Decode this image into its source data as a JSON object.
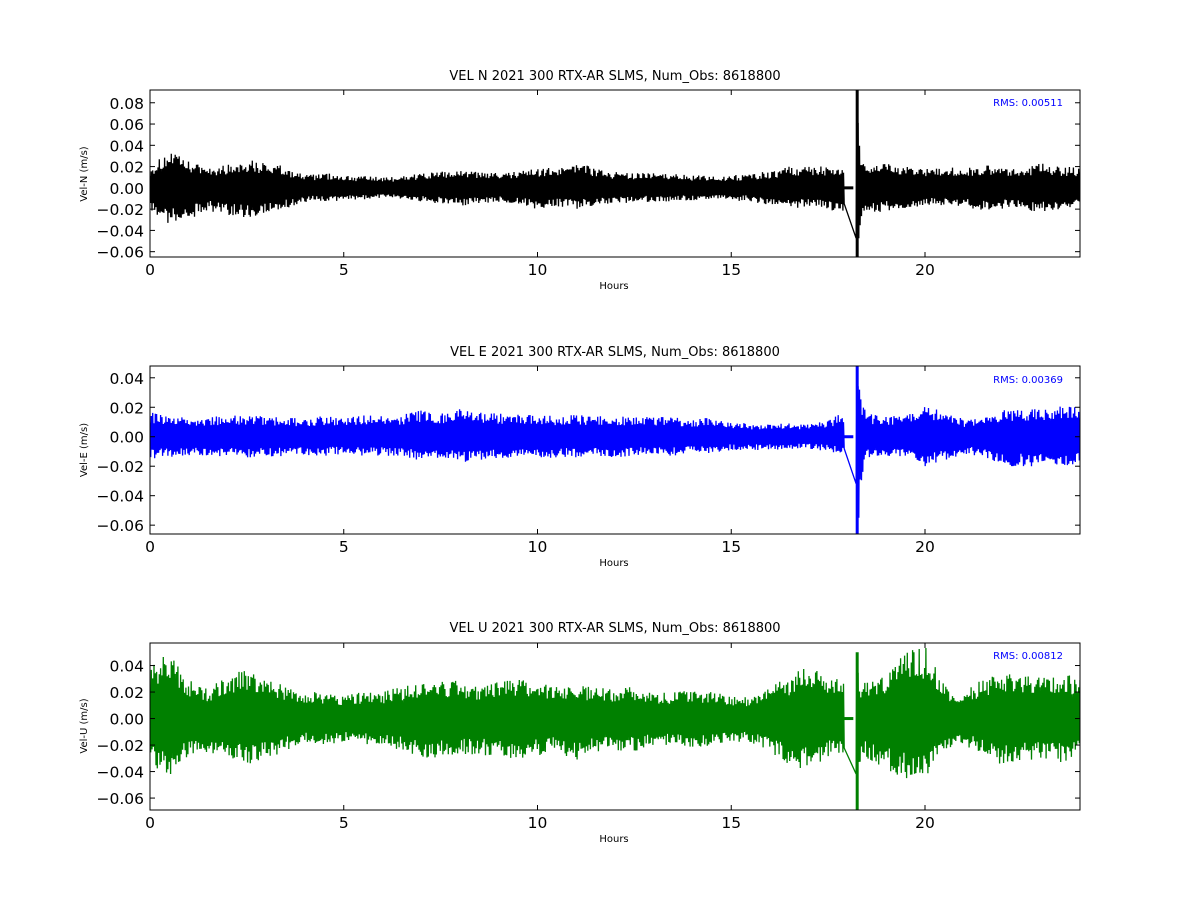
{
  "chart_data": [
    {
      "type": "line",
      "title": "VEL N 2021 300 RTX-AR  SLMS, Num_Obs: 8618800",
      "xlabel": "Hours",
      "ylabel": "Vel-N (m/s)",
      "xlim": [
        0,
        24
      ],
      "ylim": [
        -0.065,
        0.092
      ],
      "xticks": [
        "0",
        "5",
        "10",
        "15",
        "20"
      ],
      "yticks": [
        "−0.06",
        "−0.04",
        "−0.02",
        "0.00",
        "0.02",
        "0.04",
        "0.06",
        "0.08"
      ],
      "color": "#000000",
      "annotation": "RMS:  0.00511",
      "annotation_color": "#0000ff",
      "series": [
        {
          "x": [
            0,
            0.5,
            1,
            1.5,
            2,
            2.5,
            3,
            3.5,
            4,
            4.5,
            5,
            5.5,
            6,
            6.5,
            7,
            7.5,
            8,
            8.5,
            9,
            9.5,
            10,
            10.5,
            11,
            11.5,
            12,
            12.5,
            13,
            13.5,
            14,
            14.5,
            15,
            15.5,
            16,
            16.5,
            17,
            17.5,
            17.9,
            18.1,
            18.25,
            18.35,
            18.5,
            19,
            19.5,
            20,
            20.5,
            21,
            21.5,
            22,
            22.5,
            23,
            23.5,
            24
          ],
          "upper": [
            0.02,
            0.035,
            0.025,
            0.02,
            0.022,
            0.027,
            0.024,
            0.02,
            0.012,
            0.014,
            0.012,
            0.011,
            0.01,
            0.011,
            0.014,
            0.015,
            0.017,
            0.015,
            0.014,
            0.016,
            0.018,
            0.02,
            0.026,
            0.019,
            0.015,
            0.014,
            0.014,
            0.013,
            0.012,
            0.011,
            0.012,
            0.013,
            0.016,
            0.02,
            0.022,
            0.02,
            0.019,
            0.001,
            0.092,
            0.027,
            0.024,
            0.023,
            0.02,
            0.018,
            0.02,
            0.018,
            0.022,
            0.02,
            0.02,
            0.023,
            0.02,
            0.02
          ],
          "lower": [
            -0.02,
            -0.035,
            -0.03,
            -0.022,
            -0.026,
            -0.028,
            -0.024,
            -0.02,
            -0.014,
            -0.013,
            -0.012,
            -0.011,
            -0.01,
            -0.011,
            -0.013,
            -0.015,
            -0.017,
            -0.015,
            -0.014,
            -0.016,
            -0.02,
            -0.018,
            -0.02,
            -0.017,
            -0.015,
            -0.014,
            -0.013,
            -0.013,
            -0.012,
            -0.011,
            -0.012,
            -0.013,
            -0.017,
            -0.02,
            -0.018,
            -0.02,
            -0.025,
            -0.001,
            -0.065,
            -0.032,
            -0.025,
            -0.022,
            -0.02,
            -0.016,
            -0.017,
            -0.018,
            -0.022,
            -0.02,
            -0.02,
            -0.023,
            -0.02,
            -0.018
          ]
        }
      ]
    },
    {
      "type": "line",
      "title": "VEL E 2021 300 RTX-AR  SLMS, Num_Obs: 8618800",
      "xlabel": "Hours",
      "ylabel": "Vel-E (m/s)",
      "xlim": [
        0,
        24
      ],
      "ylim": [
        -0.066,
        0.048
      ],
      "xticks": [
        "0",
        "5",
        "10",
        "15",
        "20"
      ],
      "yticks": [
        "−0.06",
        "−0.04",
        "−0.02",
        "0.00",
        "0.02",
        "0.04"
      ],
      "color": "#0000ff",
      "annotation": "RMS:  0.00369",
      "annotation_color": "#0000ff",
      "series": [
        {
          "x": [
            0,
            0.5,
            1,
            1.5,
            2,
            2.5,
            3,
            3.5,
            4,
            4.5,
            5,
            5.5,
            6,
            6.5,
            7,
            7.5,
            8,
            8.5,
            9,
            9.5,
            10,
            10.5,
            11,
            11.5,
            12,
            12.5,
            13,
            13.5,
            14,
            14.5,
            15,
            15.5,
            16,
            16.5,
            17,
            17.5,
            17.9,
            18.1,
            18.25,
            18.35,
            18.5,
            19,
            19.5,
            20,
            20.5,
            21,
            21.5,
            22,
            22.5,
            23,
            23.5,
            24
          ],
          "upper": [
            0.017,
            0.014,
            0.013,
            0.013,
            0.015,
            0.014,
            0.014,
            0.013,
            0.013,
            0.014,
            0.013,
            0.015,
            0.014,
            0.015,
            0.018,
            0.016,
            0.02,
            0.017,
            0.016,
            0.015,
            0.015,
            0.014,
            0.015,
            0.014,
            0.014,
            0.014,
            0.014,
            0.013,
            0.012,
            0.013,
            0.01,
            0.009,
            0.009,
            0.009,
            0.009,
            0.011,
            0.017,
            0.001,
            0.048,
            0.028,
            0.016,
            0.014,
            0.014,
            0.021,
            0.017,
            0.012,
            0.013,
            0.018,
            0.018,
            0.019,
            0.021,
            0.02
          ],
          "lower": [
            -0.015,
            -0.014,
            -0.013,
            -0.013,
            -0.014,
            -0.014,
            -0.014,
            -0.013,
            -0.013,
            -0.013,
            -0.012,
            -0.013,
            -0.013,
            -0.014,
            -0.016,
            -0.014,
            -0.018,
            -0.016,
            -0.015,
            -0.014,
            -0.015,
            -0.014,
            -0.014,
            -0.013,
            -0.014,
            -0.013,
            -0.012,
            -0.013,
            -0.011,
            -0.012,
            -0.009,
            -0.009,
            -0.009,
            -0.009,
            -0.008,
            -0.01,
            -0.012,
            -0.001,
            -0.066,
            -0.04,
            -0.014,
            -0.013,
            -0.014,
            -0.02,
            -0.016,
            -0.012,
            -0.013,
            -0.02,
            -0.02,
            -0.02,
            -0.02,
            -0.018
          ]
        }
      ]
    },
    {
      "type": "line",
      "title": "VEL U 2021 300 RTX-AR  SLMS, Num_Obs: 8618800",
      "xlabel": "Hours",
      "ylabel": "Vel-U (m/s)",
      "xlim": [
        0,
        24
      ],
      "ylim": [
        -0.069,
        0.057
      ],
      "xticks": [
        "0",
        "5",
        "10",
        "15",
        "20"
      ],
      "yticks": [
        "−0.06",
        "−0.04",
        "−0.02",
        "0.00",
        "0.02",
        "0.04"
      ],
      "color": "#008000",
      "annotation": "RMS:  0.00812",
      "annotation_color": "#0000ff",
      "series": [
        {
          "x": [
            0,
            0.5,
            1,
            1.5,
            2,
            2.5,
            3,
            3.5,
            4,
            4.5,
            5,
            5.5,
            6,
            6.5,
            7,
            7.5,
            8,
            8.5,
            9,
            9.5,
            10,
            10.5,
            11,
            11.5,
            12,
            12.5,
            13,
            13.5,
            14,
            14.5,
            15,
            15.5,
            16,
            16.5,
            17,
            17.5,
            17.9,
            18.1,
            18.25,
            18.35,
            18.5,
            19,
            19.5,
            20,
            20.5,
            21,
            21.5,
            22,
            22.5,
            23,
            23.5,
            24
          ],
          "upper": [
            0.038,
            0.052,
            0.03,
            0.022,
            0.035,
            0.036,
            0.03,
            0.025,
            0.02,
            0.02,
            0.018,
            0.02,
            0.02,
            0.025,
            0.028,
            0.03,
            0.028,
            0.025,
            0.028,
            0.03,
            0.028,
            0.025,
            0.025,
            0.025,
            0.023,
            0.025,
            0.02,
            0.02,
            0.022,
            0.02,
            0.018,
            0.016,
            0.025,
            0.032,
            0.04,
            0.035,
            0.03,
            0.001,
            0.05,
            0.025,
            0.028,
            0.035,
            0.05,
            0.055,
            0.025,
            0.02,
            0.03,
            0.035,
            0.032,
            0.033,
            0.035,
            0.03
          ],
          "lower": [
            -0.036,
            -0.045,
            -0.03,
            -0.025,
            -0.03,
            -0.035,
            -0.03,
            -0.025,
            -0.018,
            -0.02,
            -0.018,
            -0.02,
            -0.02,
            -0.025,
            -0.03,
            -0.03,
            -0.028,
            -0.027,
            -0.03,
            -0.03,
            -0.028,
            -0.025,
            -0.032,
            -0.025,
            -0.025,
            -0.025,
            -0.02,
            -0.02,
            -0.022,
            -0.02,
            -0.018,
            -0.018,
            -0.025,
            -0.035,
            -0.04,
            -0.03,
            -0.03,
            -0.001,
            -0.069,
            -0.03,
            -0.03,
            -0.04,
            -0.045,
            -0.048,
            -0.025,
            -0.02,
            -0.028,
            -0.035,
            -0.032,
            -0.03,
            -0.033,
            -0.03
          ]
        }
      ]
    }
  ]
}
